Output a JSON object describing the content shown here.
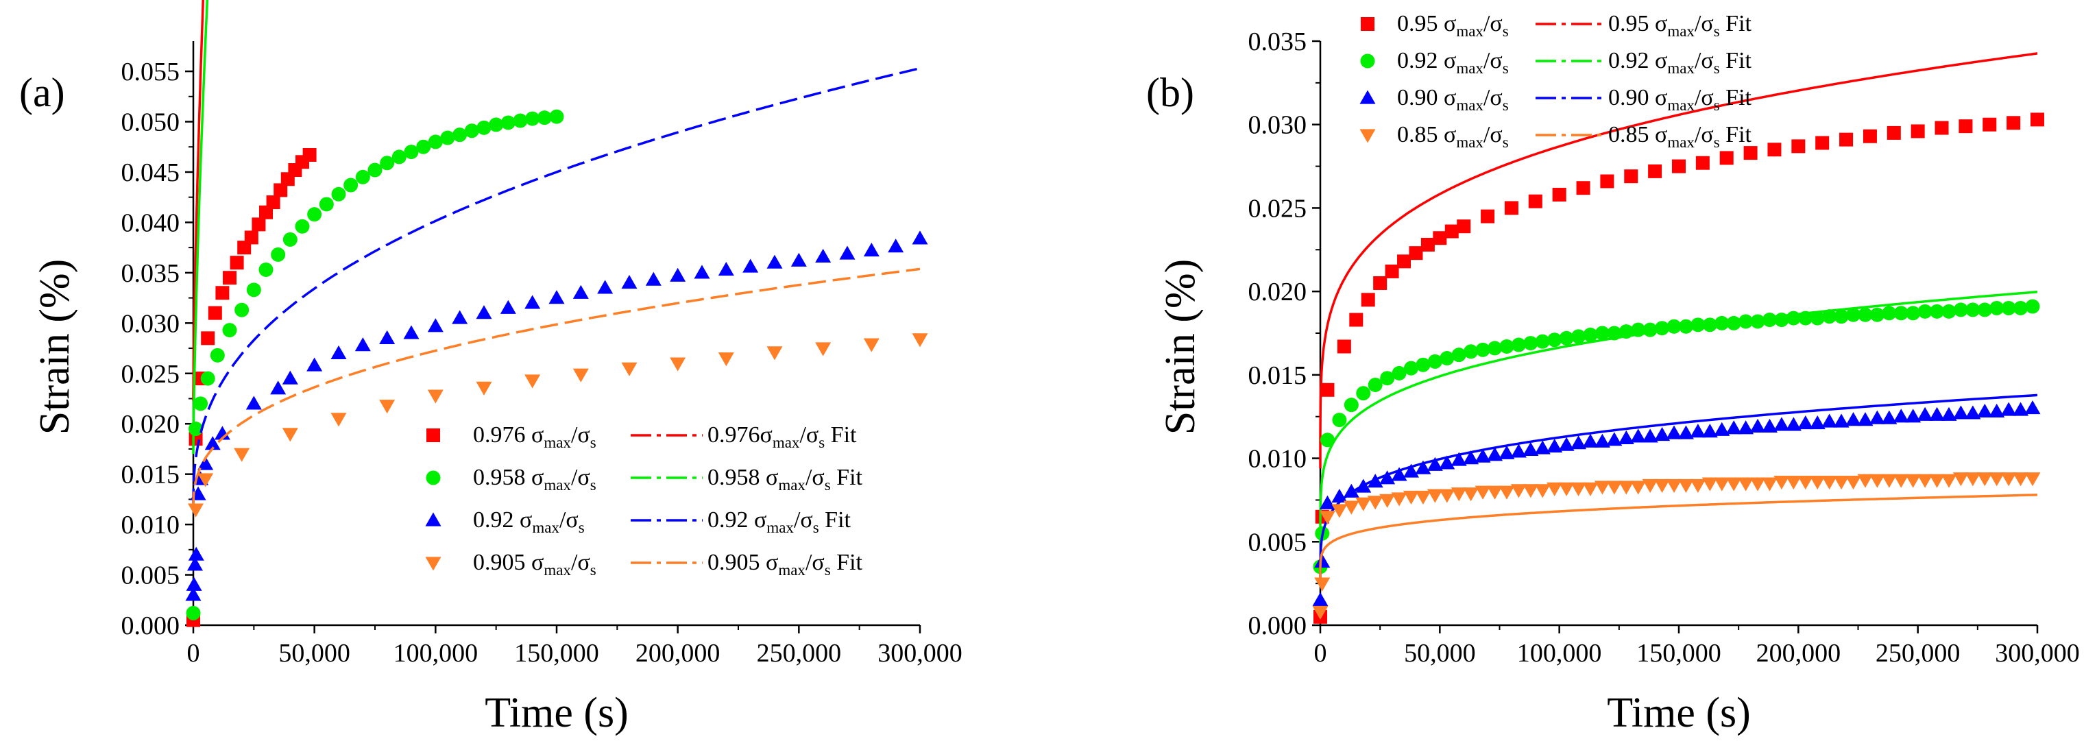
{
  "chart_data": [
    {
      "panel_label": "(a)",
      "type": "scatter",
      "xlabel": "Time (s)",
      "ylabel": "Strain (%)",
      "xlim": [
        0,
        300000
      ],
      "ylim": [
        0,
        0.058
      ],
      "xticks": [
        0,
        50000,
        100000,
        150000,
        200000,
        250000,
        300000
      ],
      "xtick_labels": [
        "0",
        "50,000",
        "100,000",
        "150,000",
        "200,000",
        "250,000",
        "300,000"
      ],
      "yticks": [
        0,
        0.005,
        0.01,
        0.015,
        0.02,
        0.025,
        0.03,
        0.035,
        0.04,
        0.045,
        0.05,
        0.055
      ],
      "ytick_labels": [
        "0.000",
        "0.005",
        "0.010",
        "0.015",
        "0.020",
        "0.025",
        "0.030",
        "0.035",
        "0.040",
        "0.045",
        "0.050",
        "0.055"
      ],
      "legend_position": "bottom-right",
      "series": [
        {
          "name": "0.976 σmax/σs",
          "label_main": "0.976 σ",
          "marker": "square",
          "color": "#ff0000",
          "fit_name": "0.976σmax/σs Fit",
          "fit_label_main": "0.976σ",
          "x": [
            0,
            1000,
            3000,
            6000,
            9000,
            12000,
            15000,
            18000,
            21000,
            24000,
            27000,
            30000,
            33000,
            36000,
            39000,
            42000,
            45000,
            48000
          ],
          "y": [
            0.0005,
            0.0185,
            0.0245,
            0.0285,
            0.031,
            0.033,
            0.0345,
            0.036,
            0.0375,
            0.0385,
            0.0398,
            0.041,
            0.042,
            0.0432,
            0.0443,
            0.0452,
            0.046,
            0.0467
          ],
          "fit": {
            "a": 0.0223,
            "b": 0.000119,
            "n": 0.7,
            "xmax": 50000
          }
        },
        {
          "name": "0.958 σmax/σs",
          "label_main": "0.958 σ",
          "marker": "circle",
          "color": "#00ee00",
          "fit_name": "0.958 σmax/σs Fit",
          "fit_label_main": "0.958 σ",
          "x": [
            0,
            1000,
            3000,
            6000,
            10000,
            15000,
            20000,
            25000,
            30000,
            35000,
            40000,
            45000,
            50000,
            55000,
            60000,
            65000,
            70000,
            75000,
            80000,
            85000,
            90000,
            95000,
            100000,
            105000,
            110000,
            115000,
            120000,
            125000,
            130000,
            135000,
            140000,
            145000,
            150000
          ],
          "y": [
            0.0012,
            0.0195,
            0.022,
            0.0245,
            0.0268,
            0.0293,
            0.0313,
            0.0333,
            0.0353,
            0.0368,
            0.0383,
            0.0396,
            0.0408,
            0.0418,
            0.0428,
            0.0437,
            0.0445,
            0.0452,
            0.0459,
            0.0465,
            0.047,
            0.0475,
            0.048,
            0.0484,
            0.0487,
            0.0491,
            0.0494,
            0.0497,
            0.0499,
            0.0501,
            0.0503,
            0.0504,
            0.0505
          ],
          "fit": {
            "a": 0.017,
            "b": 0.000108,
            "n": 0.697,
            "xmax": 150000
          }
        },
        {
          "name": "0.92 σmax/σs",
          "label_main": "0.92 σ",
          "marker": "triangle-up",
          "color": "#0000ff",
          "fit_name": "0.92 σmax/σs Fit",
          "fit_label_main": "0.92 σ",
          "x": [
            0,
            300,
            700,
            1200,
            2000,
            3000,
            5000,
            8000,
            12000,
            25000,
            35000,
            40000,
            50000,
            60000,
            70000,
            80000,
            90000,
            100000,
            110000,
            120000,
            130000,
            140000,
            150000,
            160000,
            170000,
            180000,
            190000,
            200000,
            210000,
            220000,
            230000,
            240000,
            250000,
            260000,
            270000,
            280000,
            290000,
            300000
          ],
          "y": [
            0.003,
            0.004,
            0.006,
            0.007,
            0.013,
            0.0145,
            0.016,
            0.018,
            0.019,
            0.022,
            0.0235,
            0.0245,
            0.0258,
            0.027,
            0.0278,
            0.0285,
            0.029,
            0.0297,
            0.0305,
            0.031,
            0.0315,
            0.032,
            0.0325,
            0.033,
            0.0335,
            0.034,
            0.0343,
            0.0347,
            0.035,
            0.0353,
            0.0356,
            0.036,
            0.0362,
            0.0366,
            0.0369,
            0.0372,
            0.0376,
            0.0384
          ],
          "fit": {
            "a": 0.0118,
            "b": 0.000318,
            "n": 0.39,
            "xmax": 300000
          }
        },
        {
          "name": "0.905 σmax/σs",
          "label_main": "0.905 σ",
          "marker": "triangle-down",
          "color": "#ff7f27",
          "fit_name": "0.905 σmax/σs Fit",
          "fit_label_main": "0.905 σ",
          "x": [
            1000,
            5000,
            20000,
            40000,
            60000,
            80000,
            100000,
            120000,
            140000,
            160000,
            180000,
            200000,
            220000,
            240000,
            260000,
            280000,
            300000
          ],
          "y": [
            0.0115,
            0.0145,
            0.017,
            0.019,
            0.0205,
            0.0218,
            0.0228,
            0.0236,
            0.0243,
            0.0249,
            0.0255,
            0.026,
            0.0265,
            0.0271,
            0.0275,
            0.0279,
            0.0284
          ],
          "fit": {
            "a": 0.0115,
            "b": 0.000203,
            "n": 0.378,
            "xmax": 300000
          }
        }
      ]
    },
    {
      "panel_label": "(b)",
      "type": "scatter",
      "xlabel": "Time (s)",
      "ylabel": "Strain (%)",
      "xlim": [
        0,
        300000
      ],
      "ylim": [
        0,
        0.035
      ],
      "xticks": [
        0,
        50000,
        100000,
        150000,
        200000,
        250000,
        300000
      ],
      "xtick_labels": [
        "0",
        "50,000",
        "100,000",
        "150,000",
        "200,000",
        "250,000",
        "300,000"
      ],
      "yticks": [
        0,
        0.005,
        0.01,
        0.015,
        0.02,
        0.025,
        0.03,
        0.035
      ],
      "ytick_labels": [
        "0.000",
        "0.005",
        "0.010",
        "0.015",
        "0.020",
        "0.025",
        "0.030",
        "0.035"
      ],
      "legend_position": "top-left",
      "series": [
        {
          "name": "0.95 σmax/σs",
          "label_main": "0.95 σ",
          "marker": "square",
          "color": "#ff0000",
          "fit_name": "0.95 σmax/σs Fit",
          "fit_label_main": "0.95 σ",
          "x": [
            0,
            800,
            3000,
            10000,
            15000,
            20000,
            25000,
            30000,
            35000,
            40000,
            45000,
            50000,
            55000,
            60000,
            70000,
            80000,
            90000,
            100000,
            110000,
            120000,
            130000,
            140000,
            150000,
            160000,
            170000,
            180000,
            190000,
            200000,
            210000,
            220000,
            230000,
            240000,
            250000,
            260000,
            270000,
            280000,
            290000,
            300000
          ],
          "y": [
            0.0005,
            0.0065,
            0.0141,
            0.0167,
            0.0183,
            0.0195,
            0.0205,
            0.0212,
            0.0218,
            0.0223,
            0.0228,
            0.0232,
            0.0236,
            0.0239,
            0.0245,
            0.025,
            0.0254,
            0.0258,
            0.0262,
            0.0266,
            0.0269,
            0.0272,
            0.0275,
            0.0277,
            0.028,
            0.0283,
            0.0285,
            0.0287,
            0.0289,
            0.0291,
            0.0293,
            0.0295,
            0.0296,
            0.0298,
            0.0299,
            0.03,
            0.0301,
            0.0303
          ],
          "fit": {
            "a": 0.0094,
            "b": 0.00135,
            "n": 0.231,
            "xmax": 300000
          }
        },
        {
          "name": "0.92 σmax/σs",
          "label_main": "0.92 σ",
          "marker": "circle",
          "color": "#00ee00",
          "fit_name": "0.92 σmax/σs Fit",
          "fit_label_main": "0.92 σ",
          "x": [
            0,
            800,
            3000,
            8000,
            13000,
            18000,
            23000,
            28000,
            33000,
            38000,
            43000,
            48000,
            53000,
            58000,
            63000,
            68000,
            73000,
            78000,
            83000,
            88000,
            93000,
            98000,
            103000,
            108000,
            113000,
            118000,
            123000,
            128000,
            133000,
            138000,
            143000,
            148000,
            153000,
            158000,
            163000,
            168000,
            173000,
            178000,
            183000,
            188000,
            193000,
            198000,
            203000,
            208000,
            213000,
            218000,
            223000,
            228000,
            233000,
            238000,
            243000,
            248000,
            253000,
            258000,
            263000,
            268000,
            273000,
            278000,
            283000,
            288000,
            293000,
            298000
          ],
          "y": [
            0.0035,
            0.0055,
            0.0111,
            0.0123,
            0.0132,
            0.0139,
            0.0144,
            0.0148,
            0.0151,
            0.0154,
            0.0156,
            0.0158,
            0.016,
            0.0162,
            0.0164,
            0.0165,
            0.0166,
            0.0167,
            0.0168,
            0.0169,
            0.017,
            0.0171,
            0.0172,
            0.0173,
            0.0174,
            0.0175,
            0.0175,
            0.0176,
            0.0177,
            0.0177,
            0.0178,
            0.0179,
            0.0179,
            0.018,
            0.018,
            0.0181,
            0.0181,
            0.0182,
            0.0182,
            0.0183,
            0.0183,
            0.0184,
            0.0184,
            0.0184,
            0.0185,
            0.0185,
            0.0186,
            0.0186,
            0.0186,
            0.0187,
            0.0187,
            0.0187,
            0.0188,
            0.0188,
            0.0188,
            0.0189,
            0.0189,
            0.0189,
            0.019,
            0.019,
            0.019,
            0.0191
          ],
          "fit": {
            "a": 0.0049,
            "b": 0.00085,
            "n": 0.228,
            "xmax": 300000
          }
        },
        {
          "name": "0.90 σmax/σs",
          "label_main": "0.90 σ",
          "marker": "triangle-up",
          "color": "#0000ff",
          "fit_name": "0.90 σmax/σs Fit",
          "fit_label_main": "0.90 σ",
          "x": [
            0,
            800,
            3000,
            8000,
            13000,
            18000,
            23000,
            28000,
            33000,
            38000,
            43000,
            48000,
            53000,
            58000,
            63000,
            68000,
            73000,
            78000,
            83000,
            88000,
            93000,
            98000,
            103000,
            108000,
            113000,
            118000,
            123000,
            128000,
            133000,
            138000,
            143000,
            148000,
            153000,
            158000,
            163000,
            168000,
            173000,
            178000,
            183000,
            188000,
            193000,
            198000,
            203000,
            208000,
            213000,
            218000,
            223000,
            228000,
            233000,
            238000,
            243000,
            248000,
            253000,
            258000,
            263000,
            268000,
            273000,
            278000,
            283000,
            288000,
            293000,
            298000
          ],
          "y": [
            0.0015,
            0.0038,
            0.0073,
            0.0077,
            0.008,
            0.0083,
            0.0086,
            0.0088,
            0.009,
            0.0092,
            0.0094,
            0.0096,
            0.0097,
            0.0099,
            0.01,
            0.0101,
            0.0102,
            0.0103,
            0.0104,
            0.0105,
            0.0106,
            0.0107,
            0.0108,
            0.0109,
            0.011,
            0.011,
            0.0111,
            0.0112,
            0.0113,
            0.0113,
            0.0114,
            0.0115,
            0.0115,
            0.0116,
            0.0116,
            0.0117,
            0.0118,
            0.0118,
            0.0119,
            0.0119,
            0.012,
            0.012,
            0.0121,
            0.0121,
            0.0122,
            0.0122,
            0.0123,
            0.0123,
            0.0124,
            0.0124,
            0.0125,
            0.0125,
            0.0126,
            0.0126,
            0.0126,
            0.0127,
            0.0127,
            0.0128,
            0.0128,
            0.0129,
            0.0129,
            0.013
          ],
          "fit": {
            "a": 0.0024,
            "b": 0.000634,
            "n": 0.229,
            "xmax": 300000
          }
        },
        {
          "name": "0.85 σmax/σs",
          "label_main": "0.85 σ",
          "marker": "triangle-down",
          "color": "#ff7f27",
          "fit_name": "0.85 σmax/σs Fit",
          "fit_label_main": "0.85 σ",
          "x": [
            0,
            800,
            3000,
            8000,
            13000,
            18000,
            23000,
            28000,
            33000,
            38000,
            43000,
            48000,
            53000,
            58000,
            63000,
            68000,
            73000,
            78000,
            83000,
            88000,
            93000,
            98000,
            103000,
            108000,
            113000,
            118000,
            123000,
            128000,
            133000,
            138000,
            143000,
            148000,
            153000,
            158000,
            163000,
            168000,
            173000,
            178000,
            183000,
            188000,
            193000,
            198000,
            203000,
            208000,
            213000,
            218000,
            223000,
            228000,
            233000,
            238000,
            243000,
            248000,
            253000,
            258000,
            263000,
            268000,
            273000,
            278000,
            283000,
            288000,
            293000,
            298000
          ],
          "y": [
            0.0008,
            0.0025,
            0.0065,
            0.0069,
            0.0071,
            0.0073,
            0.0074,
            0.0075,
            0.0076,
            0.0077,
            0.0077,
            0.0078,
            0.0078,
            0.0079,
            0.0079,
            0.008,
            0.008,
            0.008,
            0.0081,
            0.0081,
            0.0081,
            0.0082,
            0.0082,
            0.0082,
            0.0082,
            0.0083,
            0.0083,
            0.0083,
            0.0083,
            0.0084,
            0.0084,
            0.0084,
            0.0084,
            0.0084,
            0.0085,
            0.0085,
            0.0085,
            0.0085,
            0.0085,
            0.0085,
            0.0086,
            0.0086,
            0.0086,
            0.0086,
            0.0086,
            0.0086,
            0.0086,
            0.0087,
            0.0087,
            0.0087,
            0.0087,
            0.0087,
            0.0087,
            0.0087,
            0.0087,
            0.0088,
            0.0088,
            0.0088,
            0.0088,
            0.0088,
            0.0088,
            0.0088
          ],
          "fit": {
            "a": 0.0028,
            "b": 0.000402,
            "n": 0.2,
            "xmax": 300000
          }
        }
      ]
    }
  ]
}
